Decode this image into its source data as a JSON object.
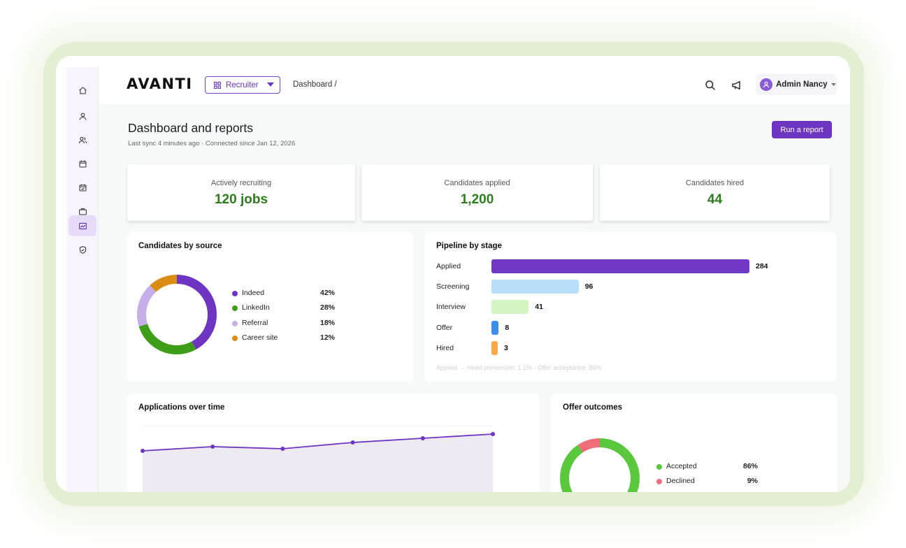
{
  "app": {
    "logo": "AVANTI",
    "role": "Recruiter",
    "breadcrumb": "Dashboard /",
    "user": "Admin Nancy",
    "accent": "#6e35c2"
  },
  "sidebar": {
    "items": [
      {
        "icon": "home-icon"
      },
      {
        "icon": "user-icon"
      },
      {
        "icon": "users-icon"
      },
      {
        "icon": "calendar-icon"
      },
      {
        "icon": "calendar-check-icon"
      },
      {
        "icon": "briefcase-icon"
      },
      {
        "icon": "chart-icon",
        "active": true
      },
      {
        "icon": "shield-icon"
      }
    ]
  },
  "header": {
    "title": "Dashboard and reports",
    "subtitle": "Last sync 4 minutes ago · Connected since Jan 12, 2026",
    "run_report": "Run a report"
  },
  "stats": [
    {
      "label": "Actively recruiting",
      "value": "120 jobs"
    },
    {
      "label": "Candidates applied",
      "value": "1,200"
    },
    {
      "label": "Candidates hired",
      "value": "44"
    }
  ],
  "sources": {
    "title": "Candidates by source",
    "items": [
      {
        "name": "Indeed",
        "pct": "42%",
        "value": 42,
        "color": "#6e35c2"
      },
      {
        "name": "LinkedIn",
        "pct": "28%",
        "value": 28,
        "color": "#3e9e1a"
      },
      {
        "name": "Referral",
        "pct": "18%",
        "value": 18,
        "color": "#c6aee8"
      },
      {
        "name": "Career site",
        "pct": "12%",
        "value": 12,
        "color": "#d98d12"
      }
    ]
  },
  "pipeline": {
    "title": "Pipeline by stage",
    "stages": [
      {
        "name": "Applied",
        "count": "284",
        "value": 284,
        "color": "#7038c4"
      },
      {
        "name": "Screening",
        "count": "96",
        "value": 96,
        "color": "#b8def9"
      },
      {
        "name": "Interview",
        "count": "41",
        "value": 41,
        "color": "#d4f5c2"
      },
      {
        "name": "Offer",
        "count": "8",
        "value": 8,
        "color": "#3b8eed"
      },
      {
        "name": "Hired",
        "count": "3",
        "value": 3,
        "color": "#f8aa48"
      }
    ],
    "footer": "Applied → Hired conversion: 1.1%  ·  Offer acceptance: 86%"
  },
  "applications": {
    "title": "Applications over time"
  },
  "offers": {
    "title": "Offer outcomes",
    "items": [
      {
        "name": "Accepted",
        "pct": "86%",
        "value": 86,
        "color": "#5ac83c"
      },
      {
        "name": "Declined",
        "pct": "9%",
        "value": 9,
        "color": "#ef6e78"
      }
    ]
  },
  "chart_data": [
    {
      "type": "pie",
      "title": "Candidates by source",
      "categories": [
        "Indeed",
        "LinkedIn",
        "Referral",
        "Career site"
      ],
      "values": [
        42,
        28,
        18,
        12
      ]
    },
    {
      "type": "bar",
      "title": "Pipeline by stage",
      "categories": [
        "Applied",
        "Screening",
        "Interview",
        "Offer",
        "Hired"
      ],
      "values": [
        284,
        96,
        41,
        8,
        3
      ]
    },
    {
      "type": "area",
      "title": "Applications over time",
      "x": [
        1,
        2,
        3,
        4,
        5,
        6
      ],
      "values": [
        38,
        40,
        39,
        42,
        44,
        46
      ],
      "ylim": [
        20,
        50
      ]
    },
    {
      "type": "pie",
      "title": "Offer outcomes",
      "categories": [
        "Accepted",
        "Declined"
      ],
      "values": [
        86,
        9
      ]
    }
  ]
}
